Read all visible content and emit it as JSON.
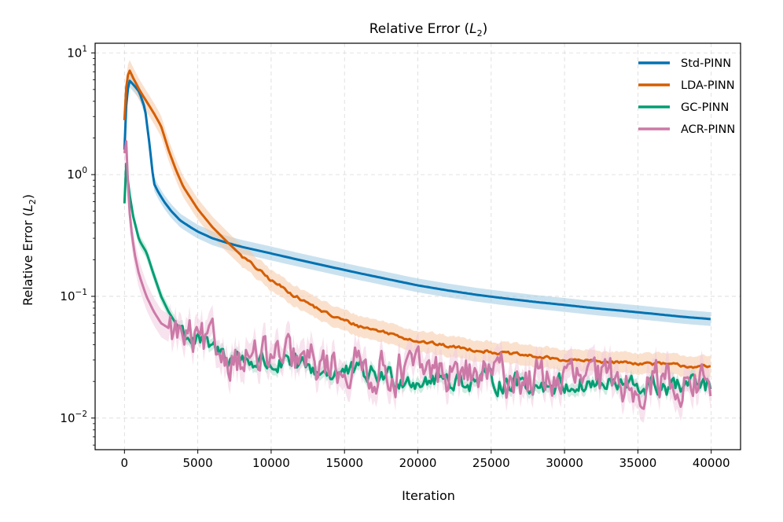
{
  "chart_data": {
    "type": "line",
    "title": "Relative Error ($L_2$)",
    "title_parts": {
      "prefix": "Relative Error (",
      "var": "L",
      "sub": "2",
      "suffix": ")"
    },
    "xlabel": "Iteration",
    "ylabel": "Relative Error ($L_2$)",
    "ylabel_parts": {
      "prefix": "Relative Error (",
      "var": "L",
      "sub": "2",
      "suffix": ")"
    },
    "yscale": "log",
    "xlim": [
      -2000,
      42000
    ],
    "ylim": [
      0.0055,
      12
    ],
    "x_ticks": [
      0,
      5000,
      10000,
      15000,
      20000,
      25000,
      30000,
      35000,
      40000
    ],
    "x_tick_labels": [
      "0",
      "5000",
      "10000",
      "15000",
      "20000",
      "25000",
      "30000",
      "35000",
      "40000"
    ],
    "y_ticks": [
      0.01,
      0.1,
      1,
      10
    ],
    "y_tick_labels": [
      {
        "base": "10",
        "exp": "−2"
      },
      {
        "base": "10",
        "exp": "−1"
      },
      {
        "base": "10",
        "exp": "0"
      },
      {
        "base": "10",
        "exp": "1"
      }
    ],
    "grid": true,
    "legend_position": "top-right",
    "series": [
      {
        "name": "Std-PINN",
        "color": "#0072B2",
        "band_color": "#9ecae1",
        "band_pct": 14,
        "x": [
          0,
          100,
          300,
          600,
          1000,
          1400,
          1700,
          2000,
          2300,
          2700,
          3200,
          3800,
          4500,
          5000,
          6000,
          7000,
          8000,
          10000,
          12000,
          14000,
          16000,
          18000,
          20000,
          22000,
          24000,
          26000,
          28000,
          30000,
          32000,
          34000,
          36000,
          38000,
          40000
        ],
        "values": [
          1.6,
          3.5,
          6.0,
          5.5,
          4.8,
          3.5,
          1.8,
          0.85,
          0.72,
          0.6,
          0.5,
          0.42,
          0.37,
          0.34,
          0.3,
          0.275,
          0.255,
          0.225,
          0.198,
          0.175,
          0.155,
          0.138,
          0.123,
          0.112,
          0.103,
          0.096,
          0.09,
          0.085,
          0.08,
          0.076,
          0.072,
          0.068,
          0.065
        ]
      },
      {
        "name": "LDA-PINN",
        "color": "#D55E00",
        "band_color": "#f5c9a5",
        "band_pct": 22,
        "x": [
          0,
          100,
          300,
          600,
          1000,
          1500,
          2000,
          2500,
          3000,
          3500,
          4000,
          5000,
          6000,
          7000,
          8000,
          9000,
          10000,
          12000,
          14000,
          16000,
          18000,
          20000,
          22000,
          25000,
          28000,
          30000,
          33000,
          36000,
          38000,
          40000
        ],
        "values": [
          2.8,
          5.0,
          7.4,
          6.2,
          5.0,
          4.0,
          3.2,
          2.5,
          1.6,
          1.1,
          0.8,
          0.52,
          0.37,
          0.28,
          0.215,
          0.17,
          0.135,
          0.095,
          0.07,
          0.057,
          0.05,
          0.043,
          0.039,
          0.035,
          0.032,
          0.03,
          0.029,
          0.028,
          0.027,
          0.026
        ]
      },
      {
        "name": "GC-PINN",
        "color": "#009E73",
        "band_color": "#a8dcc8",
        "band_pct": 12,
        "x": [
          0,
          100,
          300,
          600,
          1000,
          1500,
          2000,
          2500,
          3000,
          3500,
          4000,
          5000,
          6000,
          7000,
          8000,
          10000,
          12000,
          14000,
          16000,
          18000,
          20000,
          22000,
          24000,
          26000,
          28000,
          30000,
          32000,
          34000,
          36000,
          38000,
          40000
        ],
        "values": [
          0.58,
          1.3,
          0.75,
          0.45,
          0.29,
          0.23,
          0.15,
          0.1,
          0.075,
          0.06,
          0.052,
          0.042,
          0.036,
          0.033,
          0.031,
          0.028,
          0.026,
          0.024,
          0.023,
          0.022,
          0.021,
          0.021,
          0.02,
          0.02,
          0.019,
          0.019,
          0.019,
          0.018,
          0.018,
          0.018,
          0.018
        ]
      },
      {
        "name": "ACR-PINN",
        "color": "#CC79A7",
        "band_color": "#f0cce0",
        "band_pct": 30,
        "x": [
          0,
          100,
          200,
          400,
          700,
          1000,
          1500,
          2000,
          2500,
          3000,
          3500,
          4000,
          5000,
          6000,
          7000,
          8000,
          10000,
          12000,
          14000,
          16000,
          18000,
          20000,
          22000,
          24000,
          26000,
          28000,
          30000,
          32000,
          34000,
          36000,
          38000,
          40000
        ],
        "values": [
          1.5,
          2.2,
          1.0,
          0.4,
          0.22,
          0.15,
          0.1,
          0.075,
          0.06,
          0.055,
          0.05,
          0.045,
          0.04,
          0.036,
          0.034,
          0.032,
          0.03,
          0.028,
          0.027,
          0.026,
          0.025,
          0.024,
          0.023,
          0.022,
          0.022,
          0.021,
          0.021,
          0.02,
          0.02,
          0.02,
          0.02,
          0.019
        ]
      }
    ]
  }
}
